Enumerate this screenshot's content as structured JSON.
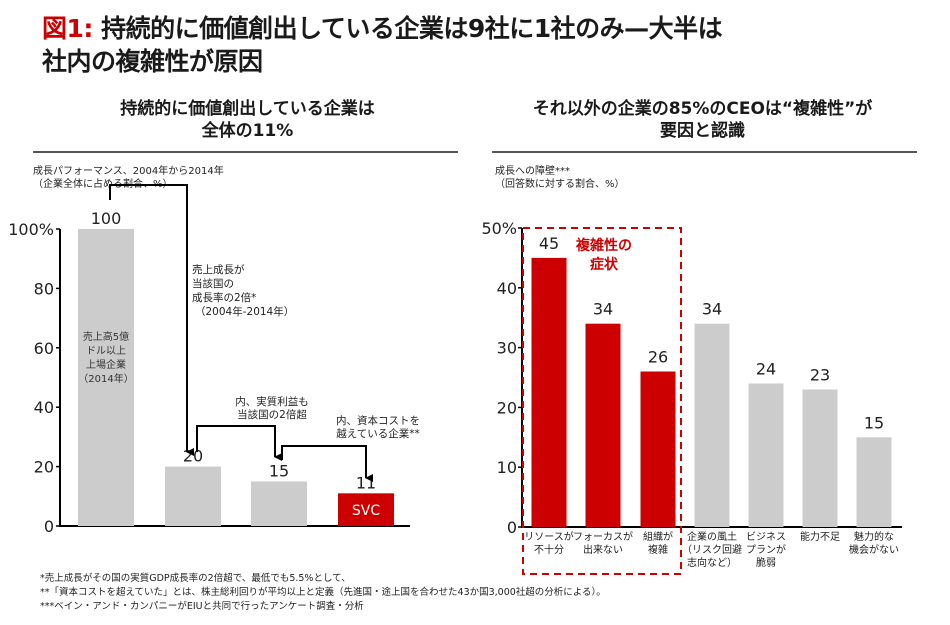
{
  "header": {
    "fig_label": "図1:",
    "title_line1": "持続的に価値創出している企業は9社に1社のみ—大半は",
    "title_line2": "社内の複雑性が原因"
  },
  "colors": {
    "accent": "#cc0000",
    "gray_bar": "#cccccc",
    "axis": "#000000"
  },
  "left_panel": {
    "subtitle_line1": "持続的に価値創出している企業は",
    "subtitle_line2": "全体の11%",
    "note_line1": "成長パフォーマンス、2004年から2014年",
    "note_line2": "（企業全体に占める割合、%）"
  },
  "right_panel": {
    "subtitle_line1": "それ以外の企業の85%のCEOは“複雑性”が",
    "subtitle_line2": "要因と認識",
    "note_line1": "成長への障壁***",
    "note_line2": "（回答数に対する割合、%）"
  },
  "chart_data": [
    {
      "type": "bar",
      "title": "持続的に価値創出している企業は全体の11%",
      "ylabel": "成長パフォーマンス、2004年から2014年（企業全体に占める割合、%）",
      "ylim": [
        0,
        100
      ],
      "yticks": [
        "100%",
        "80",
        "60",
        "40",
        "20",
        "0"
      ],
      "ytick_values": [
        100,
        80,
        60,
        40,
        20,
        0
      ],
      "categories": [
        "売上高5億ドル以上上場企業（2014年）",
        "売上成長が当該国の成長率の2倍",
        "実質利益も当該国の2倍超",
        "SVC"
      ],
      "values": [
        100,
        20,
        15,
        11
      ],
      "value_labels": [
        "100",
        "20",
        "15",
        "11"
      ],
      "highlight": [
        false,
        false,
        false,
        true
      ],
      "bar_inner_label": [
        "売上高5億",
        "ドル以上",
        "上場企業",
        "（2014年）"
      ],
      "svc_label": "SVC",
      "annotations": [
        {
          "lines": [
            "売上成長が",
            "当該国の",
            "成長率の2倍*",
            "（2004年-2014年）"
          ]
        },
        {
          "lines": [
            "内、実質利益も",
            "当該国の2倍超"
          ]
        },
        {
          "lines": [
            "内、資本コストを",
            "越えている企業**"
          ]
        }
      ]
    },
    {
      "type": "bar",
      "title": "それ以外の企業の85%のCEOは“複雑性”が要因と認識",
      "ylabel": "成長への障壁***（回答数に対する割合、%）",
      "ylim": [
        0,
        50
      ],
      "yticks": [
        "50%",
        "40",
        "30",
        "20",
        "10",
        "0"
      ],
      "ytick_values": [
        50,
        40,
        30,
        20,
        10,
        0
      ],
      "categories": [
        [
          "リソースが",
          "不十分"
        ],
        [
          "フォーカスが",
          "出来ない"
        ],
        [
          "組織が",
          "複雑"
        ],
        [
          "企業の風土",
          "（リスク回避",
          "志向など）"
        ],
        [
          "ビジネス",
          "プランが",
          "脆弱"
        ],
        [
          "能力不足"
        ],
        [
          "魅力的な",
          "機会がない"
        ]
      ],
      "values": [
        45,
        34,
        26,
        34,
        24,
        23,
        15
      ],
      "value_labels": [
        "45",
        "34",
        "26",
        "34",
        "24",
        "23",
        "15"
      ],
      "highlight": [
        true,
        true,
        true,
        false,
        false,
        false,
        false
      ],
      "group_label_line1": "複雑性の",
      "group_label_line2": "症状"
    }
  ],
  "footnotes": [
    "*売上成長がその国の実質GDP成長率の2倍超で、最低でも5.5%として、",
    "**「資本コストを超えていた」とは、株主総利回りが平均以上と定義（先進国・途上国を合わせた43か国3,000社超の分析による）。",
    "***ベイン・アンド・カンパニーがEIUと共同で行ったアンケート調査・分析"
  ]
}
